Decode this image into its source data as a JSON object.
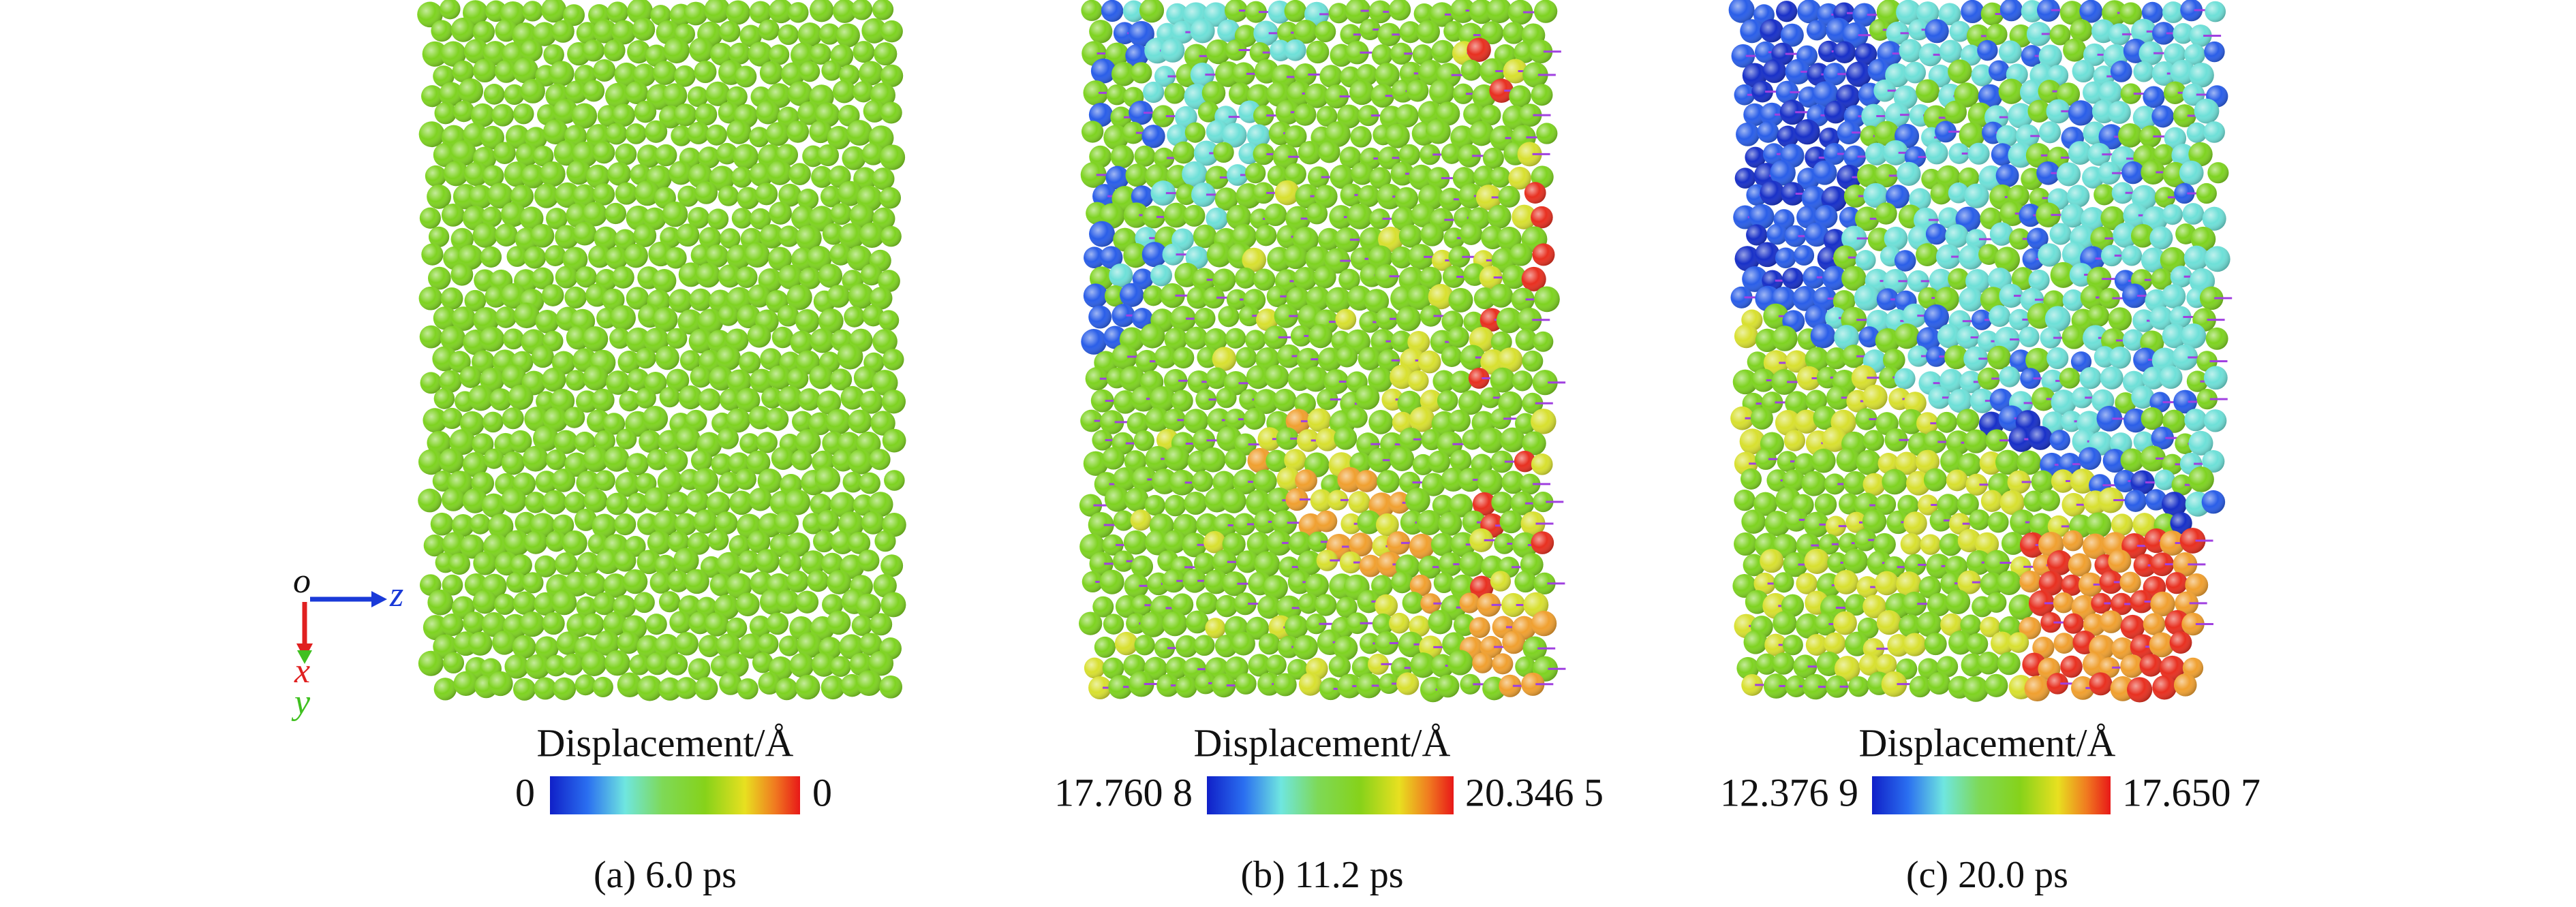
{
  "axes": {
    "origin": "o",
    "z": "z",
    "x": "x",
    "y": "y"
  },
  "panels": [
    {
      "colorbar_label": "Displacement/Å",
      "colorbar_min": "0",
      "colorbar_max": "0",
      "caption": "(a) 6.0 ps"
    },
    {
      "colorbar_label": "Displacement/Å",
      "colorbar_min": "17.760 8",
      "colorbar_max": "20.346 5",
      "caption": "(b) 11.2 ps"
    },
    {
      "colorbar_label": "Displacement/Å",
      "colorbar_min": "12.376 9",
      "colorbar_max": "17.650 7",
      "caption": "(c) 20.0 ps"
    }
  ]
}
